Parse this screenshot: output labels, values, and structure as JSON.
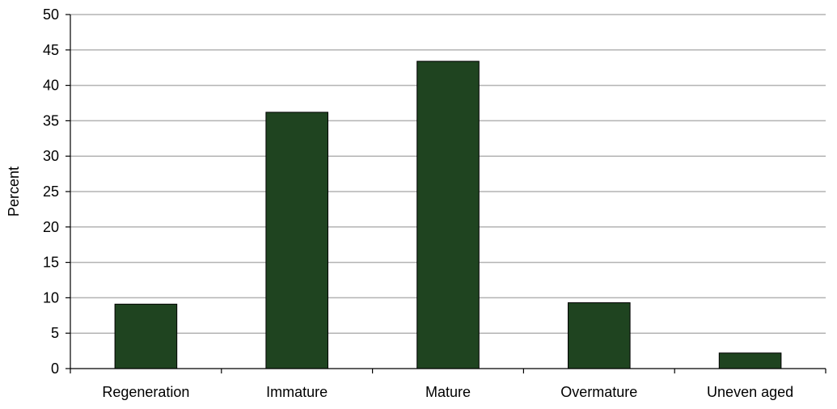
{
  "chart_data": {
    "type": "bar",
    "title": "",
    "xlabel": "",
    "ylabel": "Percent",
    "categories": [
      "Regeneration",
      "Immature",
      "Mature",
      "Overmature",
      "Uneven aged"
    ],
    "values": [
      9.1,
      36.2,
      43.4,
      9.3,
      2.2
    ],
    "ylim": [
      0,
      50
    ],
    "yticks": [
      0,
      5,
      10,
      15,
      20,
      25,
      30,
      35,
      40,
      45,
      50
    ],
    "grid": true,
    "legend": "none",
    "colors": {
      "bar_fill": "#1f4420",
      "bar_stroke": "#000000",
      "grid": "#b3b3b3",
      "axis": "#000000"
    }
  }
}
